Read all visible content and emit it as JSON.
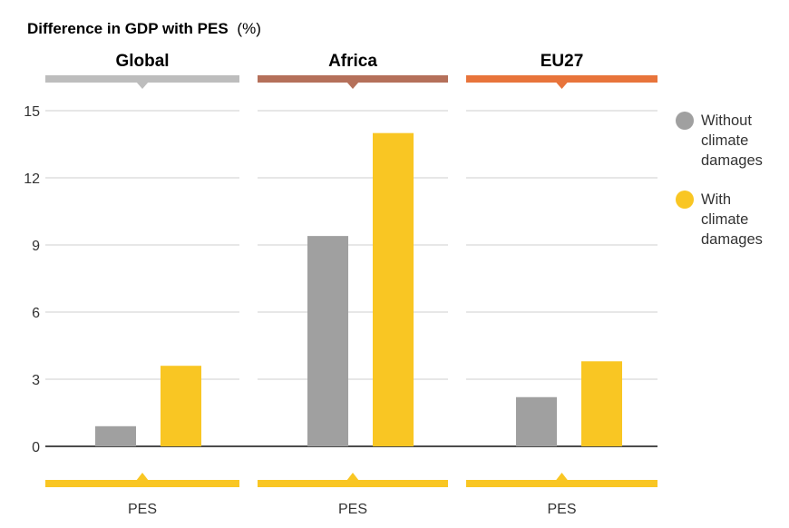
{
  "chart_data": {
    "type": "bar",
    "title_main": "Difference in GDP with PES",
    "title_unit": "(%)",
    "ylim": [
      0,
      15
    ],
    "yticks": [
      "0",
      "3",
      "6",
      "9",
      "12",
      "15"
    ],
    "ytick_values": [
      0,
      3,
      6,
      9,
      12,
      15
    ],
    "grid": true,
    "legend_position": "right",
    "x_category": "PES",
    "series": [
      {
        "name": "Without climate damages",
        "color": "#a0a0a0",
        "legend_lines": [
          "Without",
          "climate",
          "damages"
        ]
      },
      {
        "name": "With climate damages",
        "color": "#f9c623",
        "legend_lines": [
          "With",
          "climate",
          "damages"
        ]
      }
    ],
    "panels": [
      {
        "title": "Global",
        "header_color": "#bdbdbd",
        "values": [
          0.9,
          3.6
        ]
      },
      {
        "title": "Africa",
        "header_color": "#b5705a",
        "values": [
          9.4,
          14.0
        ]
      },
      {
        "title": "EU27",
        "header_color": "#e8743b",
        "values": [
          2.2,
          3.8
        ]
      }
    ],
    "footer_color": "#f9c623"
  }
}
